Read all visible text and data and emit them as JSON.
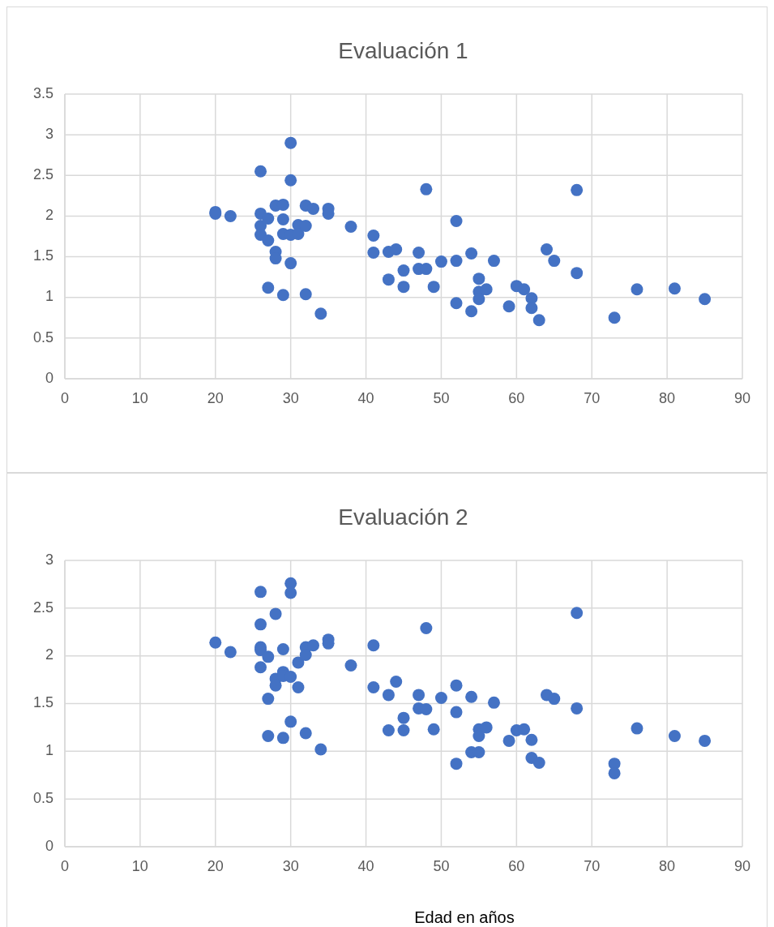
{
  "chart_data": [
    {
      "type": "scatter",
      "title": "Evaluación 1",
      "xlim": [
        0,
        90
      ],
      "xticks": [
        0,
        10,
        20,
        30,
        40,
        50,
        60,
        70,
        80,
        90
      ],
      "ylim": [
        0,
        3.5
      ],
      "yticks": [
        0,
        0.5,
        1,
        1.5,
        2,
        2.5,
        3,
        3.5
      ],
      "grid": true,
      "marker": "circle",
      "series": [
        {
          "color": "#4472c4",
          "x": [
            20,
            20,
            22,
            26,
            26,
            26,
            26,
            27,
            27,
            27,
            28,
            28,
            28,
            29,
            29,
            29,
            29,
            30,
            30,
            30,
            30,
            31,
            31,
            32,
            32,
            32,
            33,
            34,
            35,
            35,
            38,
            41,
            41,
            43,
            43,
            44,
            45,
            45,
            47,
            47,
            48,
            48,
            49,
            50,
            52,
            52,
            52,
            54,
            54,
            55,
            55,
            55,
            56,
            57,
            59,
            60,
            61,
            62,
            62,
            63,
            64,
            65,
            68,
            68,
            73,
            76,
            81,
            85
          ],
          "values": [
            2.05,
            2.03,
            2.0,
            2.55,
            2.03,
            1.88,
            1.77,
            1.97,
            1.7,
            1.12,
            2.13,
            1.56,
            1.48,
            2.14,
            1.96,
            1.78,
            1.03,
            2.9,
            2.44,
            1.77,
            1.42,
            1.89,
            1.78,
            2.13,
            1.88,
            1.04,
            2.09,
            0.8,
            2.09,
            2.03,
            1.87,
            1.76,
            1.55,
            1.56,
            1.22,
            1.59,
            1.33,
            1.13,
            1.55,
            1.35,
            2.33,
            1.35,
            1.13,
            1.44,
            1.94,
            1.45,
            0.93,
            1.54,
            0.83,
            1.23,
            1.07,
            0.98,
            1.1,
            1.45,
            0.89,
            1.14,
            1.1,
            0.99,
            0.87,
            0.72,
            1.59,
            1.45,
            2.32,
            1.3,
            0.75,
            1.1,
            1.11,
            0.98
          ]
        }
      ]
    },
    {
      "type": "scatter",
      "title": "Evaluación 2",
      "xlabel": "Edad en años",
      "xlim": [
        0,
        90
      ],
      "xticks": [
        0,
        10,
        20,
        30,
        40,
        50,
        60,
        70,
        80,
        90
      ],
      "ylim": [
        0,
        3
      ],
      "yticks": [
        0,
        0.5,
        1,
        1.5,
        2,
        2.5,
        3
      ],
      "grid": true,
      "marker": "circle",
      "series": [
        {
          "color": "#4472c4",
          "x": [
            20,
            22,
            26,
            26,
            26,
            26,
            26,
            27,
            27,
            27,
            28,
            28,
            28,
            29,
            29,
            29,
            29,
            30,
            30,
            30,
            30,
            31,
            31,
            32,
            32,
            32,
            33,
            34,
            35,
            35,
            38,
            41,
            41,
            43,
            43,
            44,
            45,
            45,
            47,
            47,
            48,
            48,
            49,
            50,
            52,
            52,
            52,
            54,
            54,
            55,
            55,
            55,
            56,
            57,
            59,
            60,
            61,
            62,
            62,
            63,
            64,
            65,
            68,
            68,
            73,
            73,
            76,
            81,
            85
          ],
          "values": [
            2.14,
            2.04,
            2.67,
            2.33,
            2.09,
            2.06,
            1.88,
            1.99,
            1.55,
            1.16,
            2.44,
            1.76,
            1.69,
            2.07,
            1.83,
            1.79,
            1.14,
            2.76,
            2.66,
            1.78,
            1.31,
            1.93,
            1.67,
            2.09,
            2.01,
            1.19,
            2.11,
            1.02,
            2.17,
            2.13,
            1.9,
            2.11,
            1.67,
            1.59,
            1.22,
            1.73,
            1.35,
            1.22,
            1.59,
            1.45,
            2.29,
            1.44,
            1.23,
            1.56,
            1.69,
            1.41,
            0.87,
            1.57,
            0.99,
            1.23,
            1.16,
            0.99,
            1.25,
            1.51,
            1.11,
            1.22,
            1.23,
            1.12,
            0.93,
            0.88,
            1.59,
            1.55,
            2.45,
            1.45,
            0.87,
            0.77,
            1.24,
            1.16,
            1.11
          ]
        }
      ]
    }
  ]
}
